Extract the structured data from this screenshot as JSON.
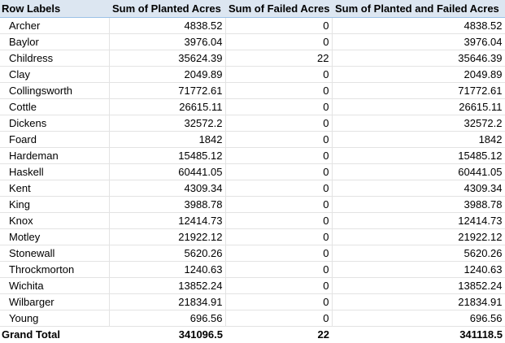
{
  "headers": {
    "row_labels": "Row Labels",
    "planted": "Sum of Planted Acres",
    "failed": "Sum of Failed Acres",
    "total": "Sum of Planted and Failed Acres"
  },
  "rows": [
    {
      "label": "Archer",
      "planted": "4838.52",
      "failed": "0",
      "total": "4838.52"
    },
    {
      "label": "Baylor",
      "planted": "3976.04",
      "failed": "0",
      "total": "3976.04"
    },
    {
      "label": "Childress",
      "planted": "35624.39",
      "failed": "22",
      "total": "35646.39"
    },
    {
      "label": "Clay",
      "planted": "2049.89",
      "failed": "0",
      "total": "2049.89"
    },
    {
      "label": "Collingsworth",
      "planted": "71772.61",
      "failed": "0",
      "total": "71772.61"
    },
    {
      "label": "Cottle",
      "planted": "26615.11",
      "failed": "0",
      "total": "26615.11"
    },
    {
      "label": "Dickens",
      "planted": "32572.2",
      "failed": "0",
      "total": "32572.2"
    },
    {
      "label": "Foard",
      "planted": "1842",
      "failed": "0",
      "total": "1842"
    },
    {
      "label": "Hardeman",
      "planted": "15485.12",
      "failed": "0",
      "total": "15485.12"
    },
    {
      "label": "Haskell",
      "planted": "60441.05",
      "failed": "0",
      "total": "60441.05"
    },
    {
      "label": "Kent",
      "planted": "4309.34",
      "failed": "0",
      "total": "4309.34"
    },
    {
      "label": "King",
      "planted": "3988.78",
      "failed": "0",
      "total": "3988.78"
    },
    {
      "label": "Knox",
      "planted": "12414.73",
      "failed": "0",
      "total": "12414.73"
    },
    {
      "label": "Motley",
      "planted": "21922.12",
      "failed": "0",
      "total": "21922.12"
    },
    {
      "label": "Stonewall",
      "planted": "5620.26",
      "failed": "0",
      "total": "5620.26"
    },
    {
      "label": "Throckmorton",
      "planted": "1240.63",
      "failed": "0",
      "total": "1240.63"
    },
    {
      "label": "Wichita",
      "planted": "13852.24",
      "failed": "0",
      "total": "13852.24"
    },
    {
      "label": "Wilbarger",
      "planted": "21834.91",
      "failed": "0",
      "total": "21834.91"
    },
    {
      "label": "Young",
      "planted": "696.56",
      "failed": "0",
      "total": "696.56"
    }
  ],
  "grand_total": {
    "label": "Grand Total",
    "planted": "341096.5",
    "failed": "22",
    "total": "341118.5"
  },
  "colors": {
    "header_bg": "#dce6f1",
    "header_border": "#9bc2e6",
    "grid": "#e3e3e3"
  }
}
